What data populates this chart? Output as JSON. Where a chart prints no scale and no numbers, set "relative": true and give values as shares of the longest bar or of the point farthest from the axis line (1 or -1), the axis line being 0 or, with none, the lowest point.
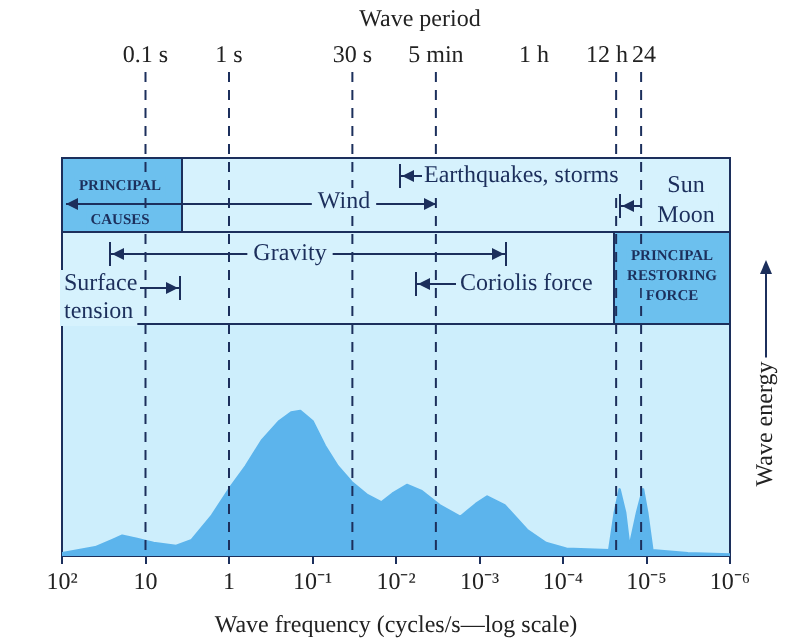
{
  "chart_data": {
    "type": "area",
    "relative": true,
    "log": "x",
    "xlabel": "Wave frequency (cycles/s—log scale)",
    "ylabel": "Wave energy",
    "x": [
      100,
      40,
      25,
      19,
      13,
      8,
      4.3,
      2.8,
      1.6,
      1,
      0.63,
      0.4,
      0.25,
      0.18,
      0.14,
      0.1,
      0.071,
      0.05,
      0.034,
      0.022,
      0.015,
      0.011,
      0.0074,
      0.005,
      0.003,
      0.0017,
      0.0011,
      0.00081,
      0.0005,
      0.00027,
      0.00016,
      9.1e-05,
      2.8e-05,
      2.4e-05,
      2.1e-05,
      1.8e-05,
      1.6e-05,
      1.3e-05,
      1.1e-05,
      9.8e-06,
      8.5e-06,
      3.2e-06,
      1e-06
    ],
    "series": [
      {
        "color": "#5cb4ec",
        "values": [
          0.02,
          0.06,
          0.11,
          0.14,
          0.12,
          0.09,
          0.07,
          0.11,
          0.28,
          0.46,
          0.62,
          0.8,
          0.93,
          0.99,
          1,
          0.93,
          0.76,
          0.62,
          0.51,
          0.42,
          0.37,
          0.43,
          0.49,
          0.45,
          0.35,
          0.27,
          0.36,
          0.41,
          0.35,
          0.18,
          0.09,
          0.05,
          0.04,
          0.3,
          0.46,
          0.3,
          0.06,
          0.3,
          0.46,
          0.3,
          0.04,
          0.02,
          0.01
        ]
      }
    ],
    "xlim": [
      100,
      1e-06
    ],
    "xticks": [
      {
        "value": 100,
        "label": "10²"
      },
      10,
      1,
      {
        "value": 0.1,
        "label": "10⁻¹"
      },
      {
        "value": 0.01,
        "label": "10⁻²"
      },
      {
        "value": 0.001,
        "label": "10⁻³"
      },
      {
        "value": 0.0001,
        "label": "10⁻⁴"
      },
      {
        "value": 1e-05,
        "label": "10⁻⁵"
      },
      {
        "value": 1e-06,
        "label": "10⁻⁶"
      }
    ],
    "ref_lines": [
      {
        "axis": "x",
        "value": 10,
        "label": "0.1 s",
        "line_style": "dashed"
      },
      {
        "axis": "x",
        "value": 1,
        "label": "1 s",
        "line_style": "dashed"
      },
      {
        "axis": "x",
        "value": 0.0333,
        "label": "30 s",
        "line_style": "dashed"
      },
      {
        "axis": "x",
        "value": 0.00333,
        "label": "5 min",
        "line_style": "dashed"
      },
      {
        "axis": "x",
        "value": 2.31e-05,
        "label": "12 h",
        "line_style": "dashed"
      },
      {
        "axis": "x",
        "value": 1.16e-05,
        "line_style": "dashed"
      }
    ],
    "annotations": [
      "PRINCIPAL CAUSES",
      "Wind",
      "Earthquakes, storms",
      "Sun Moon",
      "Gravity",
      "Surface tension",
      "Coriolis force",
      "PRINCIPAL RESTORING FORCE",
      "Wave period",
      "1 h",
      "24"
    ],
    "legend": false
  }
}
